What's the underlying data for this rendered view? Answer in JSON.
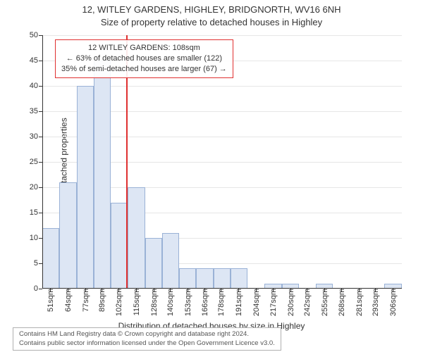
{
  "title_main": "12, WITLEY GARDENS, HIGHLEY, BRIDGNORTH, WV16 6NH",
  "title_sub": "Size of property relative to detached houses in Highley",
  "ylabel": "Number of detached properties",
  "xlabel": "Distribution of detached houses by size in Highley",
  "chart": {
    "type": "histogram",
    "ylim": [
      0,
      50
    ],
    "ytick_step": 5,
    "bar_fill": "#dde6f4",
    "bar_border": "#9ab2d6",
    "grid_color": "#e6e6e6",
    "axis_color": "#333333",
    "background_color": "#ffffff",
    "marker_color": "#e03030",
    "marker_x": 108,
    "x_min": 45,
    "x_max": 313,
    "x_tick_labels": [
      "51sqm",
      "64sqm",
      "77sqm",
      "89sqm",
      "102sqm",
      "115sqm",
      "128sqm",
      "140sqm",
      "153sqm",
      "166sqm",
      "178sqm",
      "191sqm",
      "204sqm",
      "217sqm",
      "230sqm",
      "242sqm",
      "255sqm",
      "268sqm",
      "281sqm",
      "293sqm",
      "306sqm"
    ],
    "x_tick_values": [
      51,
      64,
      77,
      89,
      102,
      115,
      128,
      140,
      153,
      166,
      178,
      191,
      204,
      217,
      230,
      242,
      255,
      268,
      281,
      293,
      306
    ],
    "bars": [
      {
        "x0": 45,
        "x1": 57.75,
        "y": 12
      },
      {
        "x0": 57.75,
        "x1": 70.5,
        "y": 21
      },
      {
        "x0": 70.5,
        "x1": 83.25,
        "y": 40
      },
      {
        "x0": 83.25,
        "x1": 96,
        "y": 45
      },
      {
        "x0": 96,
        "x1": 108.75,
        "y": 17
      },
      {
        "x0": 108.75,
        "x1": 121.5,
        "y": 20
      },
      {
        "x0": 121.5,
        "x1": 134.25,
        "y": 10
      },
      {
        "x0": 134.25,
        "x1": 147,
        "y": 11
      },
      {
        "x0": 147,
        "x1": 159.75,
        "y": 4
      },
      {
        "x0": 159.75,
        "x1": 172.5,
        "y": 4
      },
      {
        "x0": 172.5,
        "x1": 185.25,
        "y": 4
      },
      {
        "x0": 185.25,
        "x1": 198,
        "y": 4
      },
      {
        "x0": 198,
        "x1": 210.75,
        "y": 0
      },
      {
        "x0": 210.75,
        "x1": 223.5,
        "y": 1
      },
      {
        "x0": 223.5,
        "x1": 236.25,
        "y": 1
      },
      {
        "x0": 236.25,
        "x1": 249,
        "y": 0
      },
      {
        "x0": 249,
        "x1": 261.75,
        "y": 1
      },
      {
        "x0": 261.75,
        "x1": 274.5,
        "y": 0
      },
      {
        "x0": 274.5,
        "x1": 287.25,
        "y": 0
      },
      {
        "x0": 287.25,
        "x1": 300,
        "y": 0
      },
      {
        "x0": 300,
        "x1": 312.75,
        "y": 1
      }
    ]
  },
  "info_box": {
    "line1": "12 WITLEY GARDENS: 108sqm",
    "line2": "← 63% of detached houses are smaller (122)",
    "line3": "35% of semi-detached houses are larger (67) →",
    "border_color": "#e03030",
    "fontsize": 11
  },
  "footer": {
    "line1": "Contains HM Land Registry data © Crown copyright and database right 2024.",
    "line2": "Contains public sector information licensed under the Open Government Licence v3.0.",
    "border_color": "#b0b0b0",
    "fontsize": 9.5
  }
}
